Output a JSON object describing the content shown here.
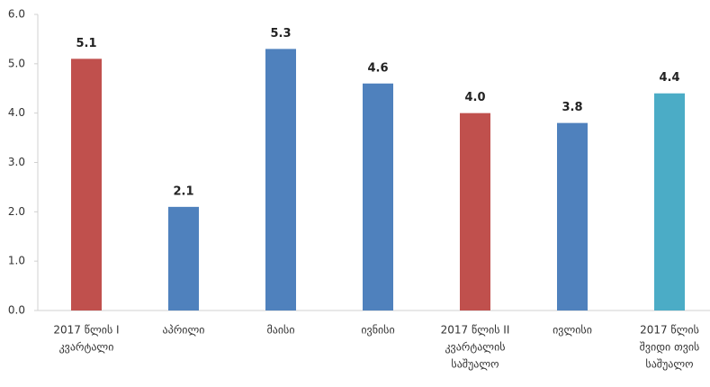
{
  "chart_data": {
    "type": "bar",
    "categories": [
      [
        "2017 წლის I",
        "კვარტალი"
      ],
      [
        "აპრილი"
      ],
      [
        "მაისი"
      ],
      [
        "ივნისი"
      ],
      [
        "2017 წლის II",
        "კვარტალის",
        "საშუალო"
      ],
      [
        "ივლისი"
      ],
      [
        "2017 წლის",
        "შვიდი თვის",
        "საშუალო"
      ]
    ],
    "values": [
      5.1,
      2.1,
      5.3,
      4.6,
      4.0,
      3.8,
      4.4
    ],
    "value_labels": [
      "5.1",
      "2.1",
      "5.3",
      "4.6",
      "4.0",
      "3.8",
      "4.4"
    ],
    "colors": [
      "#c0504d",
      "#4f81bd",
      "#4f81bd",
      "#4f81bd",
      "#c0504d",
      "#4f81bd",
      "#4bacc6"
    ],
    "ylim": [
      0,
      6
    ],
    "yticks": [
      {
        "value": 0,
        "label": "0.0"
      },
      {
        "value": 1,
        "label": "1.0"
      },
      {
        "value": 2,
        "label": "2.0"
      },
      {
        "value": 3,
        "label": "3.0"
      },
      {
        "value": 4,
        "label": "4.0"
      },
      {
        "value": 5,
        "label": "5.0"
      },
      {
        "value": 6,
        "label": "6.0"
      }
    ],
    "grid": false
  }
}
